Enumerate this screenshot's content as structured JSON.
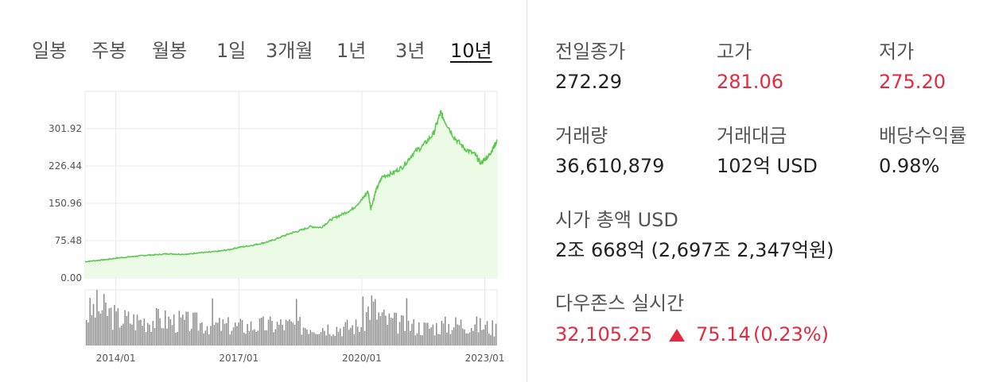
{
  "tabs": [
    {
      "label": "일봉",
      "active": false
    },
    {
      "label": "주봉",
      "active": false
    },
    {
      "label": "월봉",
      "active": false
    },
    {
      "label": "1일",
      "active": false
    },
    {
      "label": "3개월",
      "active": false
    },
    {
      "label": "1년",
      "active": false
    },
    {
      "label": "3년",
      "active": false
    },
    {
      "label": "10년",
      "active": true
    }
  ],
  "stats": {
    "prev_close": {
      "label": "전일종가",
      "value": "272.29"
    },
    "high": {
      "label": "고가",
      "value": "281.06"
    },
    "low": {
      "label": "저가",
      "value": "275.20"
    },
    "volume": {
      "label": "거래량",
      "value": "36,610,879"
    },
    "turnover": {
      "label": "거래대금",
      "value": "102억 USD"
    },
    "dividend_yield": {
      "label": "배당수익률",
      "value": "0.98%"
    },
    "market_cap": {
      "label": "시가 총액 USD",
      "value": "2조 668억 (2,697조 2,347억원)"
    },
    "index": {
      "label": "다우존스 실시간",
      "value": "32,105.25",
      "change": "75.14",
      "change_pct": "(0.23%)"
    }
  },
  "colors": {
    "up": "#e5293f",
    "line": "#5bc94f",
    "area": "#ebfbe6",
    "volume": "#8c8c8c",
    "grid": "#e8e8e8"
  },
  "chart_data": {
    "type": "area",
    "y_ticks": [
      "301.92",
      "226.44",
      "150.96",
      "75.48",
      "0.00"
    ],
    "y_tick_values": [
      301.92,
      226.44,
      150.96,
      75.48,
      0
    ],
    "ylim": [
      0,
      377.4
    ],
    "x_ticks": [
      "2014/01",
      "2017/01",
      "2020/01",
      "2023/01"
    ],
    "x_tick_values": [
      2014.0,
      2017.0,
      2020.0,
      2023.0
    ],
    "xlim": [
      2013.25,
      2023.3
    ],
    "series": [
      {
        "x": [
          2013.25,
          2013.5,
          2013.75,
          2014.0,
          2014.25,
          2014.5,
          2014.75,
          2015.0,
          2015.25,
          2015.5,
          2015.75,
          2016.0,
          2016.25,
          2016.5,
          2016.75,
          2017.0,
          2017.25,
          2017.5,
          2017.75,
          2018.0,
          2018.25,
          2018.5,
          2018.75,
          2019.0,
          2019.25,
          2019.5,
          2019.75,
          2020.0,
          2020.15,
          2020.22,
          2020.35,
          2020.5,
          2020.75,
          2021.0,
          2021.25,
          2021.5,
          2021.75,
          2021.92,
          2022.0,
          2022.25,
          2022.5,
          2022.75,
          2022.9,
          2023.0,
          2023.1,
          2023.2,
          2023.3
        ],
        "y": [
          33,
          35,
          37,
          40,
          42,
          44,
          46,
          47,
          49,
          48,
          48,
          51,
          52,
          54,
          57,
          62,
          65,
          69,
          74,
          82,
          90,
          96,
          104,
          102,
          118,
          128,
          138,
          158,
          175,
          140,
          178,
          205,
          212,
          225,
          252,
          268,
          292,
          335,
          322,
          285,
          262,
          250,
          232,
          240,
          248,
          262,
          278
        ]
      }
    ],
    "volume_series": [
      {
        "x": [
          2013.25,
          2013.5,
          2013.75,
          2014.0,
          2014.5,
          2015.0,
          2015.5,
          2016.0,
          2016.5,
          2017.0,
          2017.5,
          2018.0,
          2018.5,
          2019.0,
          2019.5,
          2020.0,
          2020.2,
          2020.4,
          2020.6,
          2021.0,
          2021.5,
          2022.0,
          2022.5,
          2023.0,
          2023.3
        ],
        "values": [
          60,
          75,
          70,
          55,
          50,
          52,
          48,
          45,
          40,
          38,
          40,
          42,
          40,
          38,
          36,
          40,
          85,
          60,
          50,
          42,
          36,
          40,
          44,
          38,
          34
        ]
      }
    ],
    "volume_ylim": [
      0,
      100
    ]
  }
}
